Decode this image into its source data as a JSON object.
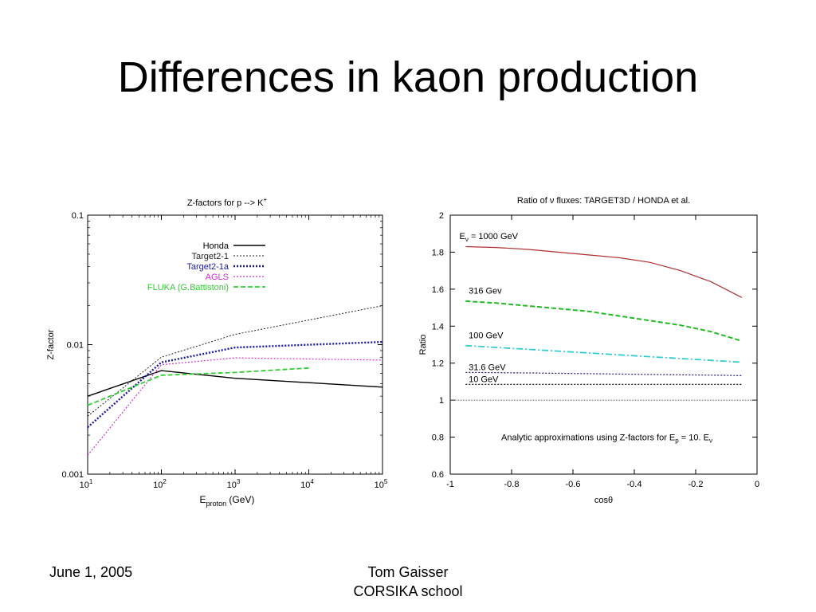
{
  "slide": {
    "title": "Differences in kaon production",
    "footer_date": "June 1, 2005",
    "footer_author_line1": "Tom Gaisser",
    "footer_author_line2": "CORSIKA school"
  },
  "chart_data": [
    {
      "type": "line",
      "title": "Z-factors for p --> K",
      "title_sup": "+",
      "xlabel_main": "E",
      "xlabel_sub": "proton",
      "xlabel_tail": " (GeV)",
      "ylabel": "Z-factor",
      "xscale": "log",
      "yscale": "log",
      "xlim": [
        10,
        100000
      ],
      "ylim": [
        0.001,
        0.1
      ],
      "xticks": [
        {
          "value": 10,
          "base": "10",
          "exp": "1"
        },
        {
          "value": 100,
          "base": "10",
          "exp": "2"
        },
        {
          "value": 1000,
          "base": "10",
          "exp": "3"
        },
        {
          "value": 10000,
          "base": "10",
          "exp": "4"
        },
        {
          "value": 100000,
          "base": "10",
          "exp": "5"
        }
      ],
      "yticks": [
        {
          "value": 0.1,
          "label": "0.1"
        },
        {
          "value": 0.01,
          "label": "0.01"
        },
        {
          "value": 0.001,
          "label": "0.001"
        }
      ],
      "legend_position": "top-center",
      "series": [
        {
          "name": "Honda",
          "color": "#000000",
          "dash": "solid",
          "width": 1.4,
          "x": [
            10,
            100,
            1000,
            100000
          ],
          "y": [
            0.004,
            0.0063,
            0.0055,
            0.0047
          ]
        },
        {
          "name": "Target2-1",
          "color": "#222222",
          "dash": "fine",
          "width": 1,
          "x": [
            10,
            100,
            1000,
            100000
          ],
          "y": [
            0.0028,
            0.008,
            0.012,
            0.02
          ]
        },
        {
          "name": "Target2-1a",
          "color": "#1a1aa0",
          "dash": "dotted",
          "width": 2.4,
          "x": [
            10,
            100,
            1000,
            100000
          ],
          "y": [
            0.0023,
            0.0073,
            0.0095,
            0.0105
          ]
        },
        {
          "name": "AGLS",
          "color": "#cc33cc",
          "dash": "dotted",
          "width": 1.2,
          "x": [
            10,
            100,
            1000,
            100000
          ],
          "y": [
            0.0014,
            0.007,
            0.0079,
            0.0076
          ]
        },
        {
          "name": "FLUKA (G.Battistoni)",
          "color": "#33cc33",
          "dash": "dashed",
          "width": 1.8,
          "x": [
            10,
            100,
            1000,
            10000
          ],
          "y": [
            0.0034,
            0.0058,
            0.0061,
            0.0066
          ]
        }
      ]
    },
    {
      "type": "line",
      "title": "Ratio of ν fluxes: TARGET3D / HONDA et al.",
      "xlabel": "cosθ",
      "ylabel": "Ratio",
      "xlim": [
        -1,
        0
      ],
      "ylim": [
        0.6,
        2
      ],
      "xticks": [
        -1,
        -0.8,
        -0.6,
        -0.4,
        -0.2,
        0
      ],
      "xtick_labels": [
        "-1",
        "-0.8",
        "-0.6",
        "-0.4",
        "-0.2",
        "0"
      ],
      "yticks": [
        0.6,
        0.8,
        1,
        1.2,
        1.4,
        1.6,
        1.8,
        2
      ],
      "ytick_labels": [
        "0.6",
        "0.8",
        "1",
        "1.2",
        "1.4",
        "1.6",
        "1.8",
        "2"
      ],
      "annotation": {
        "text_main": "Analytic approximations using Z-factors for E",
        "sub1": "p",
        "mid": " = 10. E",
        "sub2": "ν"
      },
      "reference_line": {
        "y": 1.0,
        "color": "#555555"
      },
      "series": [
        {
          "name_main": "E",
          "name_sub": "ν",
          "name_tail": " = 1000 GeV",
          "color": "#b03030",
          "dash": "solid",
          "width": 1.2,
          "x": [
            -0.95,
            -0.85,
            -0.75,
            -0.65,
            -0.55,
            -0.45,
            -0.35,
            -0.25,
            -0.15,
            -0.05
          ],
          "y": [
            1.83,
            1.825,
            1.815,
            1.8,
            1.785,
            1.77,
            1.745,
            1.7,
            1.64,
            1.555
          ],
          "label_x": -0.97,
          "label_y": 1.87
        },
        {
          "name_main": "316 Gev",
          "color": "#22bb22",
          "dash": "dashed",
          "width": 2,
          "x": [
            -0.95,
            -0.85,
            -0.75,
            -0.65,
            -0.55,
            -0.45,
            -0.35,
            -0.25,
            -0.15,
            -0.05
          ],
          "y": [
            1.535,
            1.525,
            1.51,
            1.495,
            1.48,
            1.455,
            1.43,
            1.405,
            1.37,
            1.32
          ],
          "label_x": -0.94,
          "label_y": 1.575
        },
        {
          "name_main": "100 GeV",
          "color": "#33cccc",
          "dash": "dashdot",
          "width": 1.8,
          "x": [
            -0.95,
            -0.85,
            -0.75,
            -0.65,
            -0.55,
            -0.45,
            -0.35,
            -0.25,
            -0.15,
            -0.05
          ],
          "y": [
            1.295,
            1.285,
            1.275,
            1.265,
            1.255,
            1.245,
            1.235,
            1.225,
            1.215,
            1.205
          ],
          "label_x": -0.94,
          "label_y": 1.335
        },
        {
          "name_main": "31.6 GeV",
          "color": "#1a1a80",
          "dash": "fine",
          "width": 1.2,
          "x": [
            -0.95,
            -0.75,
            -0.55,
            -0.35,
            -0.15,
            -0.05
          ],
          "y": [
            1.15,
            1.147,
            1.143,
            1.139,
            1.135,
            1.133
          ],
          "label_x": -0.94,
          "label_y": 1.162
        },
        {
          "name_main": "10 GeV",
          "color": "#111111",
          "dash": "fine",
          "width": 1.2,
          "x": [
            -0.95,
            -0.75,
            -0.55,
            -0.35,
            -0.15,
            -0.05
          ],
          "y": [
            1.085,
            1.085,
            1.085,
            1.085,
            1.085,
            1.085
          ],
          "label_x": -0.94,
          "label_y": 1.097
        }
      ]
    }
  ]
}
